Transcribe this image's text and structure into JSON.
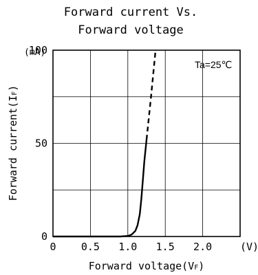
{
  "chart_data": {
    "type": "line",
    "title_lines": [
      "Forward current Vs.",
      "Forward voltage"
    ],
    "xlabel": "Forward voltage(V",
    "xlabel_sub": "F",
    "xlabel_close": ")",
    "ylabel": "Forward current(I",
    "ylabel_sub": "F",
    "ylabel_close": ")",
    "x_unit": "(V)",
    "y_unit": "(mA)",
    "annotation": "Ta=25℃",
    "xlim": [
      0,
      2.5
    ],
    "ylim": [
      0,
      100
    ],
    "x_ticks": [
      0,
      0.5,
      1.0,
      1.5,
      2.0
    ],
    "x_tick_labels": [
      "0",
      "0.5",
      "1.0",
      "1.5",
      "2.0"
    ],
    "y_ticks": [
      0,
      50,
      100
    ],
    "y_tick_labels": [
      "0",
      "50",
      "100"
    ],
    "x_grid": [
      0.5,
      1.0,
      1.5,
      2.0
    ],
    "y_grid": [
      25,
      50,
      75
    ],
    "series": [
      {
        "style": "solid",
        "x": [
          0,
          0.5,
          0.9,
          1.0,
          1.05,
          1.1,
          1.13,
          1.16,
          1.18,
          1.2,
          1.22,
          1.25
        ],
        "y": [
          0,
          0,
          0,
          0.3,
          1,
          3,
          6,
          12,
          20,
          30,
          40,
          52
        ]
      },
      {
        "style": "dashed",
        "x": [
          1.25,
          1.31,
          1.37
        ],
        "y": [
          52,
          75,
          100
        ]
      }
    ]
  }
}
